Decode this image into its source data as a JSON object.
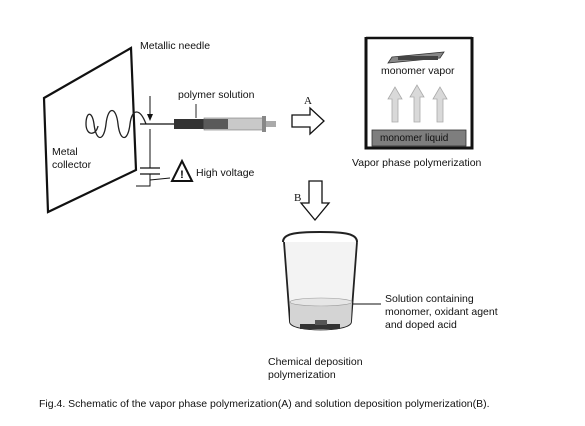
{
  "labels": {
    "metallic_needle": "Metallic needle",
    "polymer_solution": "polymer solution",
    "metal_collector_line1": "Metal",
    "metal_collector_line2": "collector",
    "high_voltage": "High voltage",
    "arrow_a": "A",
    "arrow_b": "B",
    "monomer_vapor": "monomer vapor",
    "monomer_liquid": "monomer liquid",
    "vapor_phase": "Vapor phase polymerization",
    "solution_line1": "Solution containing",
    "solution_line2": "monomer, oxidant agent",
    "solution_line3": "and doped acid",
    "chem_line1": "Chemical deposition",
    "chem_line2": "polymerization"
  },
  "caption": "Fig.4. Schematic of the vapor phase polymerization(A) and solution deposition polymerization(B)."
}
